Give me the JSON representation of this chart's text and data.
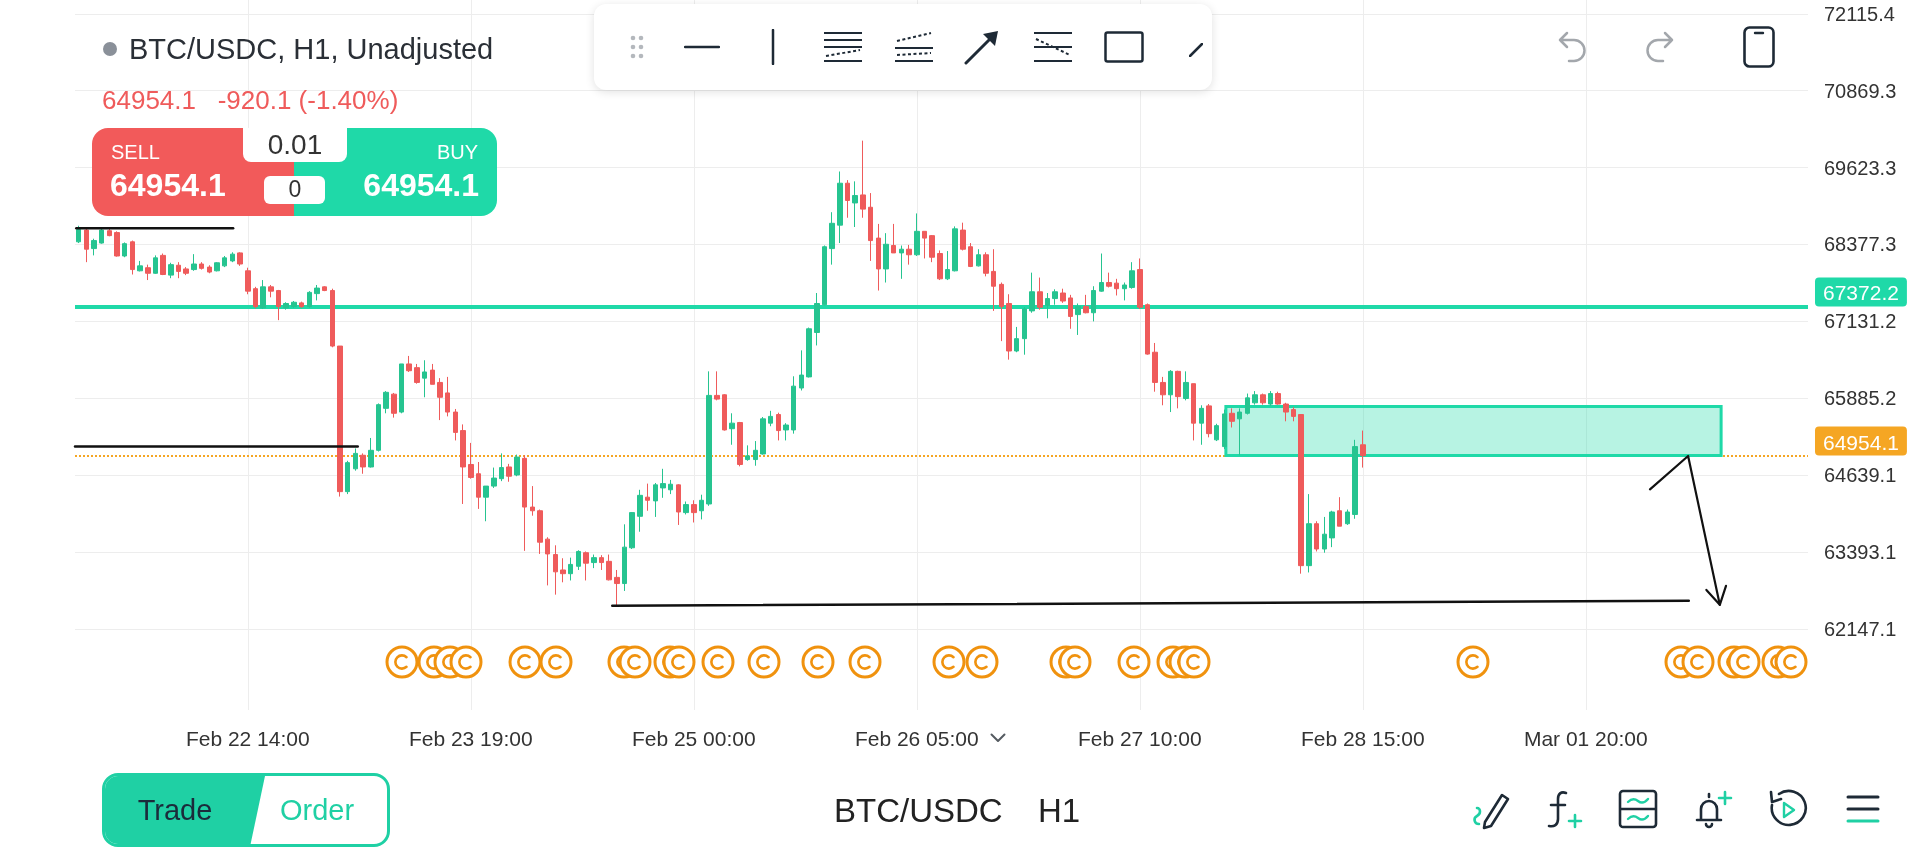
{
  "chart_data": {
    "type": "candlestick",
    "title": "BTC/USDC, H1, Unadjusted",
    "subtitle": "64954.1   -920.1 (-1.40%)",
    "annotations": [
      "SELL",
      "64954.1",
      "0.01",
      "0",
      "BUY",
      "64954.1",
      "Trade",
      "Order",
      "BTC/USDC",
      "H1"
    ],
    "series": [
      {
        "x": [
          "--02-21T16:00",
          "--02-21T17:00",
          "--02-21T18:00",
          "--02-21T19:00",
          "--02-21T20:00",
          "--02-21T21:00",
          "--02-21T22:00",
          "--02-21T23:00",
          "--02-22T00:00",
          "--02-22T01:00",
          "--02-22T02:00",
          "--02-22T03:00",
          "--02-22T04:00",
          "--02-22T05:00",
          "--02-22T06:00",
          "--02-22T07:00",
          "--02-22T08:00",
          "--02-22T09:00",
          "--02-22T10:00",
          "--02-22T11:00",
          "--02-22T12:00",
          "--02-22T13:00",
          "--02-22T14:00",
          "--02-22T15:00",
          "--02-22T16:00",
          "--02-22T17:00",
          "--02-22T18:00",
          "--02-22T19:00",
          "--02-22T20:00",
          "--02-22T21:00",
          "--02-22T22:00",
          "--02-22T23:00",
          "--02-23T00:00",
          "--02-23T01:00",
          "--02-23T02:00",
          "--02-23T03:00",
          "--02-23T04:00",
          "--02-23T05:00",
          "--02-23T06:00",
          "--02-23T07:00",
          "--02-23T08:00",
          "--02-23T09:00",
          "--02-23T10:00",
          "--02-23T11:00",
          "--02-23T12:00",
          "--02-23T13:00",
          "--02-23T14:00",
          "--02-23T15:00",
          "--02-23T16:00",
          "--02-23T17:00",
          "--02-23T18:00",
          "--02-23T19:00",
          "--02-23T20:00",
          "--02-23T21:00",
          "--02-23T22:00",
          "--02-23T23:00",
          "--02-24T00:00",
          "--02-24T01:00",
          "--02-24T02:00",
          "--02-24T03:00",
          "--02-24T04:00",
          "--02-24T05:00",
          "--02-24T06:00",
          "--02-24T07:00",
          "--02-24T08:00",
          "--02-24T09:00",
          "--02-24T10:00",
          "--02-24T11:00",
          "--02-24T12:00",
          "--02-24T13:00",
          "--02-24T14:00",
          "--02-24T15:00",
          "--02-24T16:00",
          "--02-24T17:00",
          "--02-24T18:00",
          "--02-24T19:00",
          "--02-24T20:00",
          "--02-24T21:00",
          "--02-24T22:00",
          "--02-24T23:00",
          "--02-25T00:00",
          "--02-25T01:00",
          "--02-25T02:00",
          "--02-25T03:00",
          "--02-25T04:00",
          "--02-25T05:00",
          "--02-25T06:00",
          "--02-25T07:00",
          "--02-25T08:00",
          "--02-25T09:00",
          "--02-25T10:00",
          "--02-25T11:00",
          "--02-25T12:00",
          "--02-25T13:00",
          "--02-25T14:00",
          "--02-25T15:00",
          "--02-25T16:00",
          "--02-25T17:00",
          "--02-25T18:00",
          "--02-25T19:00",
          "--02-25T20:00",
          "--02-25T21:00",
          "--02-25T22:00",
          "--02-25T23:00",
          "--02-26T00:00",
          "--02-26T01:00",
          "--02-26T02:00",
          "--02-26T03:00",
          "--02-26T04:00",
          "--02-26T05:00",
          "--02-26T06:00",
          "--02-26T07:00",
          "--02-26T08:00",
          "--02-26T09:00",
          "--02-26T10:00",
          "--02-26T11:00",
          "--02-26T12:00",
          "--02-26T13:00",
          "--02-26T14:00",
          "--02-26T15:00",
          "--02-26T16:00",
          "--02-26T17:00",
          "--02-26T18:00",
          "--02-26T19:00",
          "--02-26T20:00",
          "--02-26T21:00",
          "--02-26T22:00",
          "--02-26T23:00",
          "--02-27T00:00",
          "--02-27T01:00",
          "--02-27T02:00",
          "--02-27T03:00",
          "--02-27T04:00",
          "--02-27T05:00",
          "--02-27T06:00",
          "--02-27T07:00",
          "--02-27T08:00",
          "--02-27T09:00",
          "--02-27T10:00",
          "--02-27T11:00",
          "--02-27T12:00",
          "--02-27T13:00",
          "--02-27T14:00",
          "--02-27T15:00",
          "--02-27T16:00",
          "--02-27T17:00",
          "--02-27T18:00",
          "--02-27T19:00",
          "--02-27T20:00",
          "--02-27T21:00",
          "--02-27T22:00",
          "--02-27T23:00",
          "--02-28T00:00",
          "--02-28T01:00",
          "--02-28T02:00",
          "--02-28T03:00",
          "--02-28T04:00",
          "--02-28T05:00",
          "--02-28T06:00",
          "--02-28T07:00",
          "--02-28T08:00",
          "--02-28T09:00",
          "--02-28T10:00",
          "--02-28T11:00",
          "--02-28T12:00",
          "--02-28T13:00",
          "--02-28T14:00",
          "--02-28T15:00"
        ],
        "ohlc": [
          [
            68420,
            68680,
            68400,
            68620
          ],
          [
            68610,
            68630,
            68090,
            68300
          ],
          [
            68310,
            68470,
            68200,
            68440
          ],
          [
            68400,
            68630,
            68390,
            68610
          ],
          [
            68600,
            68630,
            68510,
            68520
          ],
          [
            68570,
            68590,
            68180,
            68190
          ],
          [
            68190,
            68410,
            68170,
            68390
          ],
          [
            68420,
            68440,
            67890,
            67970
          ],
          [
            67950,
            68110,
            67940,
            68030
          ],
          [
            68000,
            68050,
            67800,
            67910
          ],
          [
            67910,
            68200,
            67900,
            68160
          ],
          [
            68200,
            68230,
            67880,
            67890
          ],
          [
            67880,
            68080,
            67830,
            68050
          ],
          [
            68040,
            68090,
            67830,
            67940
          ],
          [
            67980,
            68010,
            67880,
            67910
          ],
          [
            67970,
            68220,
            67950,
            68060
          ],
          [
            68060,
            68090,
            67970,
            67990
          ],
          [
            68010,
            68040,
            67910,
            67930
          ],
          [
            67950,
            68090,
            67940,
            68080
          ],
          [
            68030,
            68190,
            68010,
            68160
          ],
          [
            68110,
            68250,
            68090,
            68220
          ],
          [
            68240,
            68250,
            68030,
            68060
          ],
          [
            67950,
            68000,
            67570,
            67620
          ],
          [
            67660,
            67690,
            67340,
            67370
          ],
          [
            67350,
            67800,
            67330,
            67690
          ],
          [
            67690,
            67720,
            67520,
            67620
          ],
          [
            67630,
            67640,
            67150,
            67370
          ],
          [
            67350,
            67440,
            67320,
            67420
          ],
          [
            67370,
            67460,
            67350,
            67440
          ],
          [
            67430,
            67450,
            67350,
            67370
          ],
          [
            67370,
            67620,
            67350,
            67600
          ],
          [
            67580,
            67720,
            67470,
            67670
          ],
          [
            67690,
            67700,
            67620,
            67630
          ],
          [
            67630,
            67660,
            66710,
            66730
          ],
          [
            66730,
            66730,
            64290,
            64370
          ],
          [
            64370,
            64870,
            64330,
            64840
          ],
          [
            64740,
            65070,
            64710,
            64990
          ],
          [
            64960,
            64990,
            64660,
            64770
          ],
          [
            64770,
            65240,
            64760,
            65040
          ],
          [
            65040,
            65800,
            65020,
            65780
          ],
          [
            65720,
            66000,
            65640,
            65980
          ],
          [
            65950,
            65970,
            65570,
            65640
          ],
          [
            65660,
            66440,
            65640,
            66440
          ],
          [
            66440,
            66570,
            66310,
            66330
          ],
          [
            66380,
            66440,
            66120,
            66140
          ],
          [
            66210,
            66500,
            65900,
            66310
          ],
          [
            66340,
            66440,
            66110,
            66110
          ],
          [
            66140,
            66210,
            65530,
            65900
          ],
          [
            65970,
            66230,
            65590,
            65660
          ],
          [
            65660,
            65710,
            65200,
            65330
          ],
          [
            65360,
            65460,
            64170,
            64770
          ],
          [
            64810,
            65160,
            64580,
            64600
          ],
          [
            64660,
            64850,
            64090,
            64280
          ],
          [
            64280,
            64460,
            63890,
            64460
          ],
          [
            64460,
            64760,
            64430,
            64590
          ],
          [
            64580,
            64990,
            64540,
            64760
          ],
          [
            64770,
            64820,
            64530,
            64620
          ],
          [
            64640,
            64970,
            64620,
            64930
          ],
          [
            64910,
            64960,
            63410,
            64120
          ],
          [
            64120,
            64460,
            63980,
            64060
          ],
          [
            64060,
            64080,
            63360,
            63550
          ],
          [
            63600,
            63630,
            62850,
            63360
          ],
          [
            63350,
            63500,
            62700,
            63070
          ],
          [
            63100,
            63290,
            62900,
            63040
          ],
          [
            63040,
            63300,
            62930,
            63190
          ],
          [
            63160,
            63420,
            63100,
            63400
          ],
          [
            63380,
            63400,
            62930,
            63210
          ],
          [
            63220,
            63350,
            63130,
            63300
          ],
          [
            63300,
            63340,
            63100,
            63220
          ],
          [
            63240,
            63350,
            62930,
            62940
          ],
          [
            62980,
            63100,
            62510,
            62880
          ],
          [
            62880,
            63840,
            62760,
            63470
          ],
          [
            63460,
            64040,
            63440,
            64030
          ],
          [
            63970,
            64400,
            63720,
            64310
          ],
          [
            64280,
            64500,
            64060,
            64230
          ],
          [
            64220,
            64510,
            63960,
            64480
          ],
          [
            64430,
            64740,
            64270,
            64500
          ],
          [
            64400,
            64560,
            64330,
            64490
          ],
          [
            64480,
            64490,
            63830,
            64040
          ],
          [
            64030,
            64210,
            64000,
            64160
          ],
          [
            64160,
            64230,
            63870,
            64030
          ],
          [
            64060,
            64320,
            63920,
            64230
          ],
          [
            64170,
            66320,
            64140,
            65930
          ],
          [
            65930,
            66320,
            65850,
            65870
          ],
          [
            65940,
            65950,
            65360,
            65370
          ],
          [
            65390,
            65640,
            65130,
            65480
          ],
          [
            65490,
            65500,
            64780,
            64810
          ],
          [
            64890,
            65120,
            64870,
            64950
          ],
          [
            64890,
            65190,
            64790,
            65040
          ],
          [
            64980,
            65580,
            64970,
            65550
          ],
          [
            65480,
            65680,
            65430,
            65590
          ],
          [
            65620,
            65650,
            65200,
            65360
          ],
          [
            65370,
            65480,
            65200,
            65450
          ],
          [
            65370,
            66240,
            65310,
            66080
          ],
          [
            66050,
            66660,
            66010,
            66260
          ],
          [
            66230,
            67030,
            66220,
            67010
          ],
          [
            66950,
            67590,
            66740,
            67420
          ],
          [
            67400,
            68360,
            67390,
            68340
          ],
          [
            68310,
            68900,
            68050,
            68720
          ],
          [
            68690,
            69560,
            68400,
            69370
          ],
          [
            69370,
            69420,
            68810,
            69090
          ],
          [
            69050,
            69400,
            68660,
            69170
          ],
          [
            69180,
            70060,
            68810,
            68950
          ],
          [
            68980,
            69210,
            68110,
            68440
          ],
          [
            68480,
            68710,
            67630,
            67980
          ],
          [
            67980,
            68560,
            67760,
            68380
          ],
          [
            68360,
            68710,
            68240,
            68240
          ],
          [
            68240,
            68360,
            67820,
            68300
          ],
          [
            68300,
            68370,
            68050,
            68210
          ],
          [
            68210,
            68880,
            68190,
            68590
          ],
          [
            68590,
            68590,
            68150,
            68480
          ],
          [
            68520,
            68530,
            68090,
            68170
          ],
          [
            68230,
            68280,
            67800,
            67820
          ],
          [
            67820,
            68270,
            67800,
            67970
          ],
          [
            67950,
            68670,
            67940,
            68630
          ],
          [
            68610,
            68730,
            68280,
            68300
          ],
          [
            68340,
            68400,
            68010,
            68020
          ],
          [
            68030,
            68300,
            68020,
            68210
          ],
          [
            68210,
            68250,
            67860,
            67910
          ],
          [
            67940,
            68300,
            67300,
            67700
          ],
          [
            67730,
            67760,
            66810,
            67370
          ],
          [
            67420,
            67570,
            66510,
            66650
          ],
          [
            66650,
            67040,
            66630,
            66850
          ],
          [
            66850,
            67360,
            66590,
            67330
          ],
          [
            67300,
            67920,
            67270,
            67610
          ],
          [
            67610,
            67840,
            67320,
            67360
          ],
          [
            67390,
            67590,
            67180,
            67500
          ],
          [
            67500,
            67650,
            67400,
            67610
          ],
          [
            67590,
            67660,
            67430,
            67460
          ],
          [
            67510,
            67560,
            67010,
            67210
          ],
          [
            67240,
            67420,
            66910,
            67370
          ],
          [
            67370,
            67560,
            67260,
            67270
          ],
          [
            67270,
            67700,
            67130,
            67630
          ],
          [
            67620,
            68230,
            67610,
            67760
          ],
          [
            67760,
            67920,
            67680,
            67700
          ],
          [
            67750,
            67820,
            67550,
            67660
          ],
          [
            67660,
            67760,
            67470,
            67720
          ],
          [
            67680,
            68090,
            67660,
            67950
          ],
          [
            67970,
            68150,
            67330,
            67360
          ],
          [
            67400,
            67420,
            66590,
            66600
          ],
          [
            66630,
            66780,
            65990,
            66140
          ],
          [
            66140,
            66230,
            65770,
            65940
          ],
          [
            65940,
            66340,
            65660,
            66320
          ],
          [
            66320,
            66330,
            65720,
            65910
          ],
          [
            65880,
            66320,
            65850,
            66140
          ],
          [
            66120,
            66120,
            65200,
            65480
          ],
          [
            65480,
            65770,
            65130,
            65720
          ],
          [
            65760,
            65790,
            65250,
            65310
          ],
          [
            65210,
            65470,
            65190,
            65440
          ],
          [
            65100,
            65700,
            65060,
            65630
          ],
          [
            65640,
            65720,
            65410,
            65510
          ],
          [
            65550,
            65720,
            64960,
            65660
          ],
          [
            65640,
            65960,
            65620,
            65890
          ],
          [
            65810,
            66000,
            65780,
            65940
          ],
          [
            65940,
            65960,
            65780,
            65810
          ],
          [
            65790,
            66000,
            65760,
            65960
          ],
          [
            65960,
            65990,
            65780,
            65790
          ],
          [
            65790,
            65810,
            65510,
            65660
          ],
          [
            65700,
            65740,
            65510,
            65590
          ],
          [
            65620,
            65620,
            63040,
            63170
          ],
          [
            63170,
            64330,
            63060,
            63850
          ],
          [
            63850,
            63890,
            63400,
            63440
          ],
          [
            63440,
            63960,
            63380,
            63680
          ],
          [
            63620,
            64060,
            63470,
            64040
          ],
          [
            64060,
            64280,
            63810,
            63810
          ],
          [
            63850,
            64080,
            63830,
            64040
          ],
          [
            64000,
            65210,
            63930,
            65100
          ],
          [
            65130,
            65360,
            64760,
            64954.1
          ]
        ],
        "colors": [
          "#26c490",
          "#ef5b5b",
          "#26c490",
          "#26c490",
          "#ef5b5b",
          "#ef5b5b",
          "#26c490",
          "#ef5b5b",
          "#26c490",
          "#ef5b5b",
          "#26c490",
          "#ef5b5b",
          "#26c490",
          "#ef5b5b",
          "#ef5b5b",
          "#26c490",
          "#ef5b5b",
          "#ef5b5b",
          "#26c490",
          "#26c490",
          "#26c490",
          "#ef5b5b",
          "#ef5b5b",
          "#ef5b5b",
          "#26c490",
          "#ef5b5b",
          "#ef5b5b",
          "#26c490",
          "#26c490",
          "#ef5b5b",
          "#26c490",
          "#26c490",
          "#ef5b5b",
          "#ef5b5b",
          "#ef5b5b",
          "#26c490",
          "#26c490",
          "#ef5b5b",
          "#26c490",
          "#26c490",
          "#26c490",
          "#ef5b5b",
          "#26c490",
          "#ef5b5b",
          "#ef5b5b",
          "#26c490",
          "#ef5b5b",
          "#ef5b5b",
          "#ef5b5b",
          "#ef5b5b",
          "#ef5b5b",
          "#ef5b5b",
          "#ef5b5b",
          "#26c490",
          "#26c490",
          "#26c490",
          "#ef5b5b",
          "#26c490",
          "#ef5b5b",
          "#ef5b5b",
          "#ef5b5b",
          "#ef5b5b",
          "#ef5b5b",
          "#ef5b5b",
          "#26c490",
          "#26c490",
          "#ef5b5b",
          "#26c490",
          "#ef5b5b",
          "#ef5b5b",
          "#ef5b5b",
          "#26c490",
          "#26c490",
          "#26c490",
          "#ef5b5b",
          "#26c490",
          "#26c490",
          "#26c490",
          "#ef5b5b",
          "#26c490",
          "#ef5b5b",
          "#26c490",
          "#26c490",
          "#ef5b5b",
          "#ef5b5b",
          "#26c490",
          "#ef5b5b",
          "#26c490",
          "#26c490",
          "#26c490",
          "#26c490",
          "#ef5b5b",
          "#26c490",
          "#26c490",
          "#26c490",
          "#26c490",
          "#26c490",
          "#26c490",
          "#26c490",
          "#26c490",
          "#ef5b5b",
          "#26c490",
          "#ef5b5b",
          "#ef5b5b",
          "#ef5b5b",
          "#26c490",
          "#ef5b5b",
          "#26c490",
          "#ef5b5b",
          "#26c490",
          "#ef5b5b",
          "#ef5b5b",
          "#ef5b5b",
          "#26c490",
          "#26c490",
          "#ef5b5b",
          "#ef5b5b",
          "#26c490",
          "#ef5b5b",
          "#ef5b5b",
          "#ef5b5b",
          "#ef5b5b",
          "#26c490",
          "#26c490",
          "#26c490",
          "#ef5b5b",
          "#26c490",
          "#26c490",
          "#ef5b5b",
          "#ef5b5b",
          "#26c490",
          "#ef5b5b",
          "#26c490",
          "#26c490",
          "#ef5b5b",
          "#ef5b5b",
          "#26c490",
          "#26c490",
          "#ef5b5b",
          "#ef5b5b",
          "#ef5b5b",
          "#ef5b5b",
          "#26c490",
          "#ef5b5b",
          "#26c490",
          "#ef5b5b",
          "#26c490",
          "#ef5b5b",
          "#26c490",
          "#26c490",
          "#ef5b5b",
          "#26c490",
          "#26c490",
          "#26c490",
          "#ef5b5b",
          "#26c490",
          "#ef5b5b",
          "#ef5b5b",
          "#ef5b5b",
          "#ef5b5b",
          "#26c490",
          "#ef5b5b",
          "#26c490",
          "#26c490",
          "#ef5b5b",
          "#26c490",
          "#26c490",
          "#ef5b5b"
        ]
      },
      {
        "type": "line",
        "x": [
          "--02-27T21:12",
          "--03-02T13:36"
        ],
        "values": [
          null,
          null
        ],
        "lower": [
          64954.1,
          64954.1
        ],
        "upper": [
          65750,
          65750
        ],
        "color": "#1fd9a8"
      },
      {
        "type": "line",
        "x": [
          "--02-21T15:42",
          "--02-22T12:06"
        ],
        "values": [
          68640,
          68640
        ],
        "color": "#111111"
      },
      {
        "type": "line",
        "x": [
          "--02-21T15:32",
          "--02-23T04:18"
        ],
        "values": [
          65100,
          65100
        ],
        "color": "#111111"
      },
      {
        "type": "line",
        "x": [
          "--02-24T13:24",
          "--03-02T09:24"
        ],
        "values": [
          62520,
          62600
        ],
        "color": "#111111"
      }
    ],
    "xlim": [
      "--02-21T15:32",
      "--03-03T00:54"
    ],
    "xticks": [
      {
        "value": "--02-22T14:00",
        "label": "Feb 22 14:00"
      },
      {
        "value": "--02-23T19:00",
        "label": "Feb 23 19:00"
      },
      {
        "value": "--02-25T00:00",
        "label": "Feb 25 00:00"
      },
      {
        "value": "--02-26T05:00",
        "label": "Feb 26 05:00"
      },
      {
        "value": "--02-27T10:00",
        "label": "Feb 27 10:00"
      },
      {
        "value": "--02-28T15:00",
        "label": "Feb 28 15:00"
      },
      {
        "value": "--03-01T20:00",
        "label": "Mar 01 20:00"
      }
    ],
    "ylim": [
      60830,
      72340
    ],
    "yticks": [
      62147.1,
      63393.1,
      64639.1,
      65885.2,
      67131.2,
      68377.3,
      69623.3,
      70869.3,
      72115.4
    ],
    "ref_lines": [
      {
        "axis": "y",
        "value": 67372.2,
        "label": "67372.2",
        "color": "#1fd9a8",
        "line_style": "solid"
      },
      {
        "axis": "y",
        "value": 64954.1,
        "label": "64954.1",
        "color": "#f5a623",
        "line_style": "dotted"
      }
    ],
    "grid": true
  }
}
